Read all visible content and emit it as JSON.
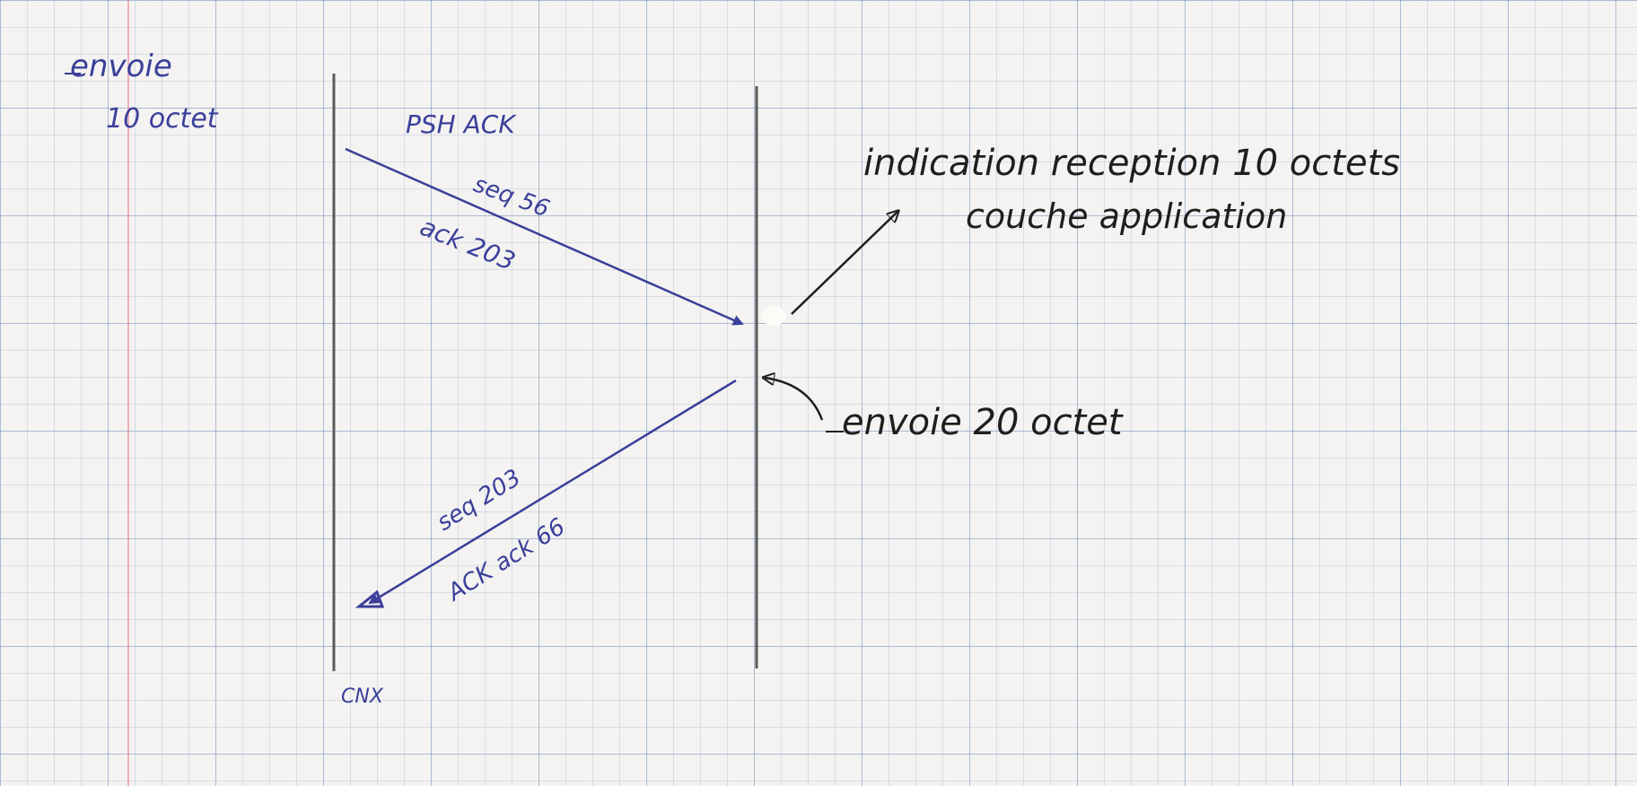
{
  "sender_note": {
    "line1": "envoie",
    "line2": "10 octet"
  },
  "segment_forward": {
    "flags": "PSH  ACK",
    "seq": "seq  56",
    "ack": "ack  203"
  },
  "segment_back": {
    "seq": "seq 203",
    "ack": "ACK  ack 66"
  },
  "receiver_notes": {
    "indication_line1": "indication reception 10 octets",
    "indication_line2": "couche application",
    "send_note": "envoie  20 octet"
  },
  "connection_label": "CNX",
  "colors": {
    "ink_blue": "#3b3f9a",
    "ink_black": "#1e1e1e",
    "pencil": "#5a5a5a",
    "paper": "#f4f3f1"
  }
}
